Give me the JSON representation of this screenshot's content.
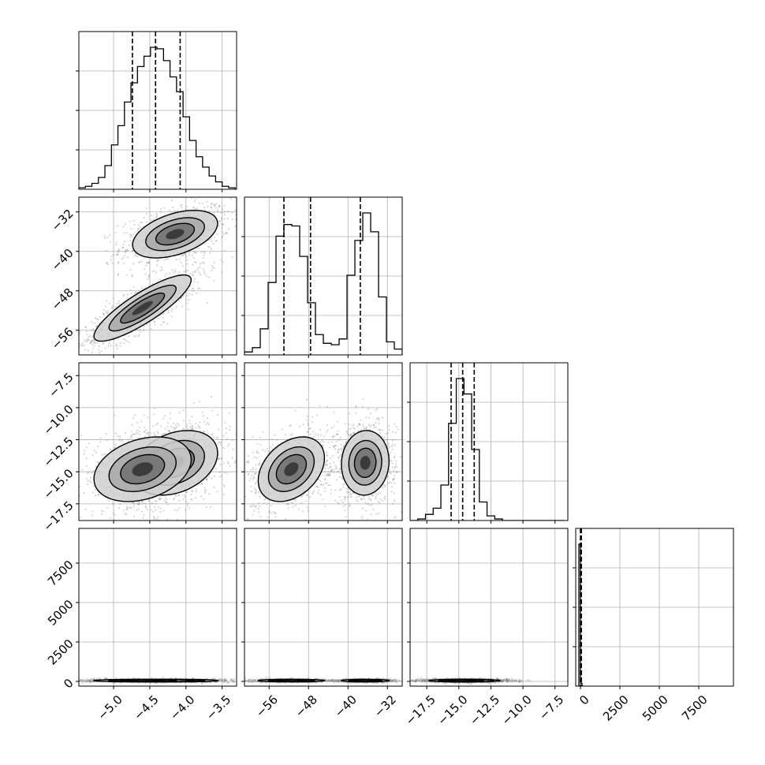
{
  "chart_data": {
    "type": "corner",
    "parameters": [
      {
        "label": "",
        "range": [
          -5.48,
          -3.3
        ],
        "ticks": [
          {
            "value": -5.0,
            "label": "−5.0"
          },
          {
            "value": -4.5,
            "label": "−4.5"
          },
          {
            "value": -4.0,
            "label": "−4.0"
          },
          {
            "value": -3.5,
            "label": "−3.5"
          }
        ],
        "quantiles": [
          -4.74,
          -4.42,
          -4.08
        ],
        "histogram": {
          "bins": [
            -5.48,
            -5.39,
            -5.3,
            -5.21,
            -5.12,
            -5.03,
            -4.94,
            -4.85,
            -4.76,
            -4.67,
            -4.58,
            -4.49,
            -4.4,
            -4.31,
            -4.22,
            -4.13,
            -4.04,
            -3.95,
            -3.86,
            -3.77,
            -3.68,
            -3.59,
            -3.5,
            -3.41,
            -3.32
          ],
          "counts": [
            0.01,
            0.02,
            0.04,
            0.08,
            0.16,
            0.3,
            0.43,
            0.59,
            0.72,
            0.83,
            0.9,
            0.96,
            0.95,
            0.87,
            0.76,
            0.66,
            0.49,
            0.33,
            0.22,
            0.15,
            0.09,
            0.05,
            0.02,
            0.01
          ]
        }
      },
      {
        "label": "",
        "range": [
          -61,
          -29
        ],
        "ticks": [
          {
            "value": -56,
            "label": "−56"
          },
          {
            "value": -48,
            "label": "−48"
          },
          {
            "value": -40,
            "label": "−40"
          },
          {
            "value": -32,
            "label": "−32"
          }
        ],
        "quantiles": [
          -53.0,
          -47.6,
          -37.5
        ],
        "histogram": {
          "bins": [
            -61,
            -59.4,
            -57.8,
            -56.2,
            -54.6,
            -53,
            -51.4,
            -49.8,
            -48.2,
            -46.6,
            -45,
            -43.4,
            -41.8,
            -40.2,
            -38.6,
            -37,
            -35.4,
            -33.8,
            -32.2,
            -30.6,
            -29
          ],
          "counts": [
            0.02,
            0.05,
            0.18,
            0.5,
            0.82,
            0.9,
            0.89,
            0.68,
            0.36,
            0.14,
            0.08,
            0.07,
            0.11,
            0.55,
            0.79,
            0.98,
            0.85,
            0.4,
            0.09,
            0.04
          ]
        }
      },
      {
        "label": "",
        "range": [
          -18.8,
          -6.5
        ],
        "ticks": [
          {
            "value": -17.5,
            "label": "−17.5"
          },
          {
            "value": -15.0,
            "label": "−15.0"
          },
          {
            "value": -12.5,
            "label": "−12.5"
          },
          {
            "value": -10.0,
            "label": "−10.0"
          },
          {
            "value": -7.5,
            "label": "−7.5"
          }
        ],
        "quantiles": [
          -15.6,
          -14.7,
          -13.8
        ],
        "histogram": {
          "bins": [
            -18.8,
            -18.2,
            -17.6,
            -17.0,
            -16.4,
            -15.8,
            -15.2,
            -14.6,
            -14.0,
            -13.4,
            -12.8,
            -12.2,
            -11.6,
            -11.0,
            -10.4,
            -9.8,
            -9.2,
            -8.6,
            -8.0,
            -7.4,
            -6.8
          ],
          "counts": [
            0.0,
            0.01,
            0.04,
            0.08,
            0.23,
            0.63,
            0.92,
            0.82,
            0.46,
            0.12,
            0.03,
            0.01,
            0.0,
            0.0,
            0.0,
            0.0,
            0.0,
            0.0,
            0.0,
            0.0
          ]
        }
      },
      {
        "label": "",
        "range": [
          -300,
          9700
        ],
        "ticks": [
          {
            "value": 0,
            "label": "0"
          },
          {
            "value": 2500,
            "label": "2500"
          },
          {
            "value": 5000,
            "label": "5000"
          },
          {
            "value": 7500,
            "label": "7500"
          }
        ],
        "quantiles": [
          0,
          20,
          60
        ],
        "histogram": {
          "bins": [
            -300,
            -200,
            -100,
            0,
            100,
            200
          ],
          "counts": [
            0.0,
            0.0,
            0.98,
            0.02,
            0.0
          ]
        }
      }
    ],
    "clusters": [
      {
        "name": "",
        "mean": [
          -4.15,
          -36.5,
          -14.3,
          50
        ],
        "sd": [
          0.28,
          2.3,
          1.2,
          40
        ],
        "rho": [
          [
            1,
            0.45,
            0.3,
            0
          ],
          [
            0.45,
            1,
            0.05,
            0
          ],
          [
            0.3,
            0.05,
            1,
            0
          ],
          [
            0,
            0,
            0,
            1
          ]
        ],
        "weight": 0.5
      },
      {
        "name": "",
        "mean": [
          -4.6,
          -51.5,
          -14.8,
          50
        ],
        "sd": [
          0.32,
          3.2,
          1.2,
          40
        ],
        "rho": [
          [
            1,
            0.85,
            0.3,
            0
          ],
          [
            0.85,
            1,
            0.35,
            0
          ],
          [
            0.3,
            0.35,
            1,
            0
          ],
          [
            0,
            0,
            0,
            1
          ]
        ],
        "weight": 0.5
      }
    ],
    "grid": true,
    "legend": "none"
  }
}
